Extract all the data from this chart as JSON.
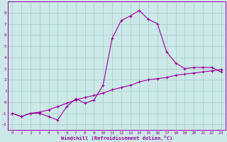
{
  "xlabel": "Windchill (Refroidissement éolien,°C)",
  "bg_color": "#cce8e8",
  "grid_color": "#aacccc",
  "line_color": "#990099",
  "line1_x": [
    0,
    1,
    2,
    3,
    4,
    5,
    6,
    7,
    8,
    9,
    10,
    11,
    12,
    13,
    14,
    15,
    16,
    17,
    18,
    19,
    20,
    21,
    22,
    23
  ],
  "line1_y": [
    -1.0,
    -1.3,
    -1.0,
    -1.0,
    -1.3,
    -1.6,
    -0.4,
    0.3,
    -0.1,
    0.2,
    1.5,
    5.7,
    7.3,
    7.7,
    8.2,
    7.4,
    7.0,
    4.5,
    3.5,
    3.0,
    3.1,
    3.1,
    3.1,
    2.7
  ],
  "line2_x": [
    0,
    1,
    2,
    3,
    4,
    5,
    6,
    7,
    8,
    9,
    10,
    11,
    12,
    13,
    14,
    15,
    16,
    17,
    18,
    19,
    20,
    21,
    22,
    23
  ],
  "line2_y": [
    -1.0,
    -1.3,
    -1.0,
    -0.9,
    -0.7,
    -0.4,
    -0.1,
    0.2,
    0.4,
    0.6,
    0.8,
    1.1,
    1.3,
    1.5,
    1.8,
    2.0,
    2.1,
    2.2,
    2.4,
    2.5,
    2.6,
    2.7,
    2.8,
    2.9
  ],
  "xlim": [
    -0.5,
    23.5
  ],
  "ylim": [
    -2.5,
    9.0
  ],
  "yticks": [
    -2,
    -1,
    0,
    1,
    2,
    3,
    4,
    5,
    6,
    7,
    8
  ],
  "xticks": [
    0,
    1,
    2,
    3,
    4,
    5,
    6,
    7,
    8,
    9,
    10,
    11,
    12,
    13,
    14,
    15,
    16,
    17,
    18,
    19,
    20,
    21,
    22,
    23
  ]
}
